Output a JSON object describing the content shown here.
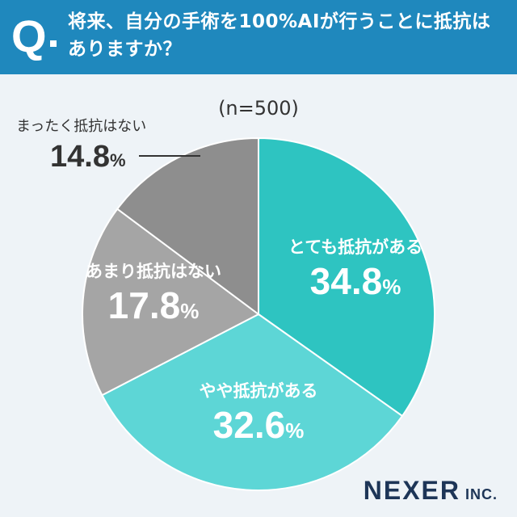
{
  "header": {
    "q_mark": "Q",
    "question": "将来、自分の手術を100%AIが行うことに抵抗はありますか？"
  },
  "chart_data": {
    "type": "pie",
    "title": "",
    "note": "(n=500)",
    "unit": "%",
    "start_angle_deg": 0,
    "direction": "clockwise",
    "slices": [
      {
        "label": "とても抵抗がある",
        "value": 34.8,
        "value_text": "34.8",
        "color": "#2ec4c1"
      },
      {
        "label": "やや抵抗がある",
        "value": 32.6,
        "value_text": "32.6",
        "color": "#5dd6d6"
      },
      {
        "label": "あまり抵抗はない",
        "value": 17.8,
        "value_text": "17.8",
        "color": "#a5a5a5"
      },
      {
        "label": "まったく抵抗はない",
        "value": 14.8,
        "value_text": "14.8",
        "color": "#8e8e8e"
      }
    ]
  },
  "brand": {
    "name": "NEXER",
    "suffix": "INC."
  }
}
